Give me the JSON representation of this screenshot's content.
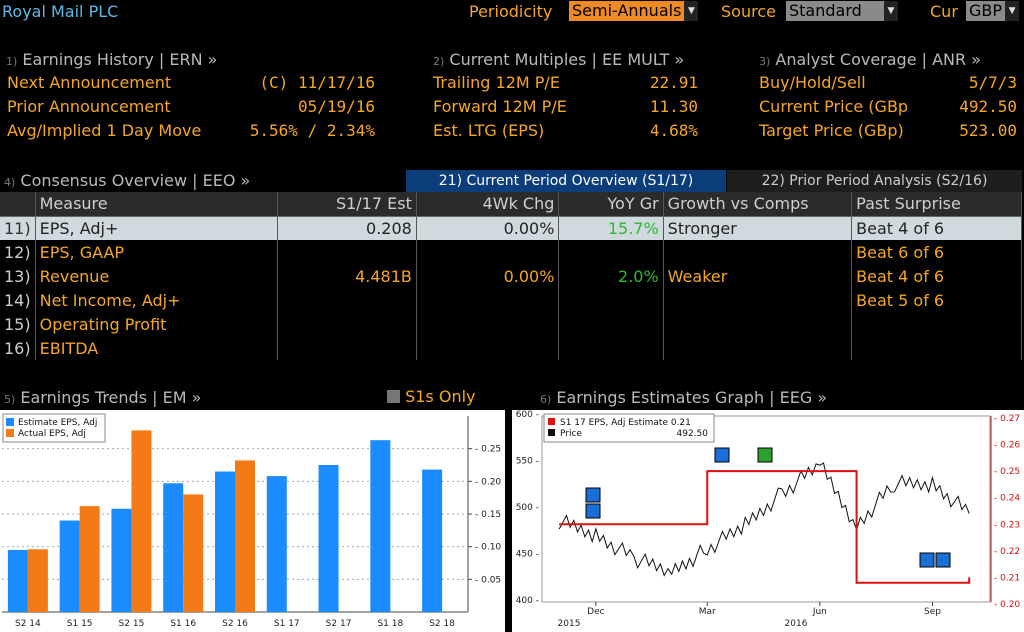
{
  "header": {
    "company": "Royal Mail PLC",
    "periodicity_label": "Periodicity",
    "periodicity_value": "Semi-Annuals",
    "source_label": "Source",
    "source_value": "Standard",
    "cur_label": "Cur",
    "cur_value": "GBP"
  },
  "earnings_history": {
    "num": "1)",
    "title": "Earnings History | ERN »",
    "rows": [
      {
        "label": "Next Announcement",
        "value": "(C)  11/17/16"
      },
      {
        "label": "Prior Announcement",
        "value": "05/19/16"
      },
      {
        "label": "Avg/Implied 1 Day Move",
        "value": "5.56% / 2.34%"
      }
    ]
  },
  "current_multiples": {
    "num": "2)",
    "title": "Current Multiples | EE MULT »",
    "rows": [
      {
        "label": "Trailing 12M P/E",
        "value": "22.91"
      },
      {
        "label": "Forward 12M P/E",
        "value": "11.30"
      },
      {
        "label": "Est. LTG (EPS)",
        "value": "4.68%"
      }
    ]
  },
  "analyst_coverage": {
    "num": "3)",
    "title": "Analyst Coverage | ANR »",
    "rows": [
      {
        "label": "Buy/Hold/Sell",
        "value": "5/7/3"
      },
      {
        "label": "Current Price (GBp",
        "value": "492.50"
      },
      {
        "label": "Target Price (GBp)",
        "value": "523.00"
      }
    ]
  },
  "consensus": {
    "num": "4)",
    "title": "Consensus Overview | EEO »",
    "tab_current": "21) Current Period Overview (S1/17)",
    "tab_prior": "22) Prior Period Analysis (S2/16)",
    "columns": [
      "Measure",
      "S1/17 Est",
      "4Wk Chg",
      "YoY Gr",
      "Growth vs Comps",
      "Past Surprise"
    ],
    "rows": [
      {
        "num": "11)",
        "measure": "EPS, Adj+",
        "est": "0.208",
        "chg": "0.00%",
        "yoy": "15.7%",
        "comps": "Stronger",
        "surprise": "Beat 4 of 6"
      },
      {
        "num": "12)",
        "measure": "EPS, GAAP",
        "est": "",
        "chg": "",
        "yoy": "",
        "comps": "",
        "surprise": "Beat 6 of 6"
      },
      {
        "num": "13)",
        "measure": "Revenue",
        "est": "4.481B",
        "chg": "0.00%",
        "yoy": "2.0%",
        "comps": "Weaker",
        "surprise": "Beat 4 of 6"
      },
      {
        "num": "14)",
        "measure": "Net Income, Adj+",
        "est": "",
        "chg": "",
        "yoy": "",
        "comps": "",
        "surprise": "Beat 5 of 6"
      },
      {
        "num": "15)",
        "measure": "Operating Profit",
        "est": "",
        "chg": "",
        "yoy": "",
        "comps": "",
        "surprise": ""
      },
      {
        "num": "16)",
        "measure": "EBITDA",
        "est": "",
        "chg": "",
        "yoy": "",
        "comps": "",
        "surprise": ""
      }
    ]
  },
  "trends": {
    "num": "5)",
    "title": "Earnings Trends | EM »",
    "toggle_label": "S1s Only"
  },
  "estimates_graph": {
    "num": "6)",
    "title": "Earnings Estimates Graph | EEG »"
  },
  "colors": {
    "estimate": "#1a8cff",
    "actual": "#f47a18",
    "amber": "#f5a623",
    "red_line": "#e01010"
  },
  "chart_data": [
    {
      "type": "bar",
      "categories": [
        "S2 14",
        "S1 15",
        "S2 15",
        "S1 16",
        "S2 16",
        "S1 17",
        "S2 17",
        "S1 18",
        "S2 18"
      ],
      "series": [
        {
          "name": "Estimate EPS, Adj",
          "values": [
            0.095,
            0.14,
            0.158,
            0.197,
            0.215,
            0.208,
            0.225,
            0.263,
            0.218
          ]
        },
        {
          "name": "Actual EPS, Adj",
          "values": [
            0.096,
            0.162,
            0.278,
            0.18,
            0.232,
            null,
            null,
            null,
            null
          ]
        }
      ],
      "yticks": [
        0.05,
        0.1,
        0.15,
        0.2,
        0.25
      ],
      "ylim": [
        0,
        0.3
      ],
      "legend": "top-left"
    },
    {
      "type": "line",
      "series": [
        {
          "name": "S1 17 EPS, Adj Estimate",
          "value_label": "0.21",
          "axis": "right",
          "x": [
            "2015-11",
            "2015-12",
            "2016-02",
            "2016-03",
            "2016-05",
            "2016-06",
            "2016-07",
            "2016-10"
          ],
          "values": [
            0.23,
            0.23,
            0.23,
            0.25,
            0.25,
            0.25,
            0.208,
            0.21
          ]
        },
        {
          "name": "Price",
          "value_label": "492.50",
          "axis": "left",
          "x": [
            "2015-11",
            "2015-12",
            "2016-01",
            "2016-02",
            "2016-03",
            "2016-04",
            "2016-05",
            "2016-06",
            "2016-07",
            "2016-08",
            "2016-09",
            "2016-10"
          ],
          "values": [
            485,
            470,
            445,
            430,
            455,
            480,
            515,
            545,
            480,
            525,
            525,
            493
          ]
        }
      ],
      "left_ticks": [
        400,
        450,
        500,
        550,
        600
      ],
      "right_ticks": [
        "0.20",
        "0.21",
        "0.22",
        "0.23",
        "0.24",
        "0.25",
        "0.26",
        "0.27"
      ],
      "x_ticks": [
        "Dec",
        "Mar",
        "Jun",
        "Sep"
      ],
      "x_years": [
        "2015",
        "2016"
      ]
    }
  ]
}
